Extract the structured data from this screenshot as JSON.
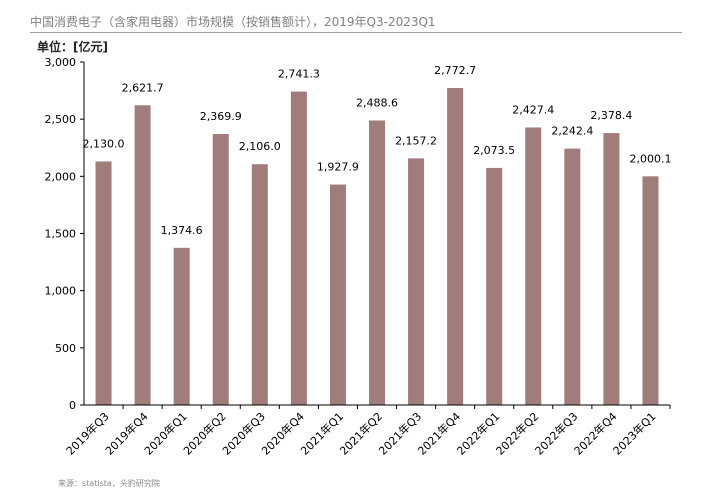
{
  "header": {
    "title": "中国消费电子（含家用电器）市场规模（按销售额计），2019年Q3-2023Q1",
    "unit": "单位：[亿元]"
  },
  "footer": {
    "source": "来源：statista，头豹研究院"
  },
  "colors": {
    "bar": "#a07c7b",
    "axis": "#000000"
  },
  "chart_data": {
    "type": "bar",
    "title": "中国消费电子（含家用电器）市场规模（按销售额计），2019年Q3-2023Q1",
    "xlabel": "",
    "ylabel": "单位：[亿元]",
    "ylim": [
      0,
      3000
    ],
    "yticks": [
      0,
      500,
      1000,
      1500,
      2000,
      2500,
      3000
    ],
    "ytick_labels": [
      "0",
      "500",
      "1,000",
      "1,500",
      "2,000",
      "2,500",
      "3,000"
    ],
    "grid": false,
    "legend": "none",
    "categories": [
      "2019年Q3",
      "2019年Q4",
      "2020年Q1",
      "2020年Q2",
      "2020年Q3",
      "2020年Q4",
      "2021年Q1",
      "2021年Q2",
      "2021年Q3",
      "2021年Q4",
      "2022年Q1",
      "2022年Q2",
      "2022年Q3",
      "2022年Q4",
      "2023年Q1"
    ],
    "values": [
      2130.0,
      2621.7,
      1374.6,
      2369.9,
      2106.0,
      2741.3,
      1927.9,
      2488.6,
      2157.2,
      2772.7,
      2073.5,
      2427.4,
      2242.4,
      2378.4,
      2000.1
    ],
    "value_labels": [
      "2,130.0",
      "2,621.7",
      "1,374.6",
      "2,369.9",
      "2,106.0",
      "2,741.3",
      "1,927.9",
      "2,488.6",
      "2,157.2",
      "2,772.7",
      "2,073.5",
      "2,427.4",
      "2,242.4",
      "2,378.4",
      "2,000.1"
    ]
  }
}
